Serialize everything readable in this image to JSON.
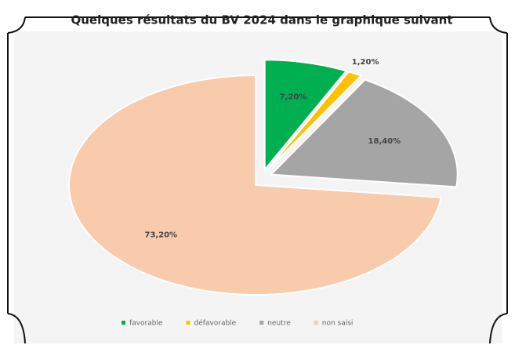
{
  "chart_data": {
    "type": "pie",
    "title": "Quelques résultats du BV 2024 dans le graphique suivant",
    "categories": [
      "favorable",
      "défavorable",
      "neutre",
      "non saisi"
    ],
    "values": [
      7.2,
      1.2,
      18.4,
      73.2
    ],
    "value_labels": [
      "7,20%",
      "1,20%",
      "18,40%",
      "73,20%"
    ],
    "colors": [
      "#00b050",
      "#ffc000",
      "#a5a5a5",
      "#f8cbad"
    ],
    "legend": "bottom"
  }
}
